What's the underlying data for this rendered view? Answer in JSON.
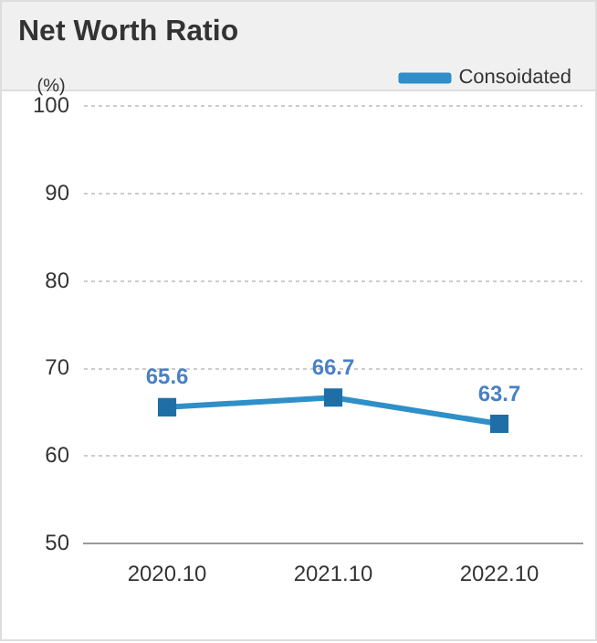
{
  "chart_data": {
    "type": "line",
    "title": "Net Worth Ratio",
    "ylabel": "(%)",
    "categories": [
      "2020.10",
      "2021.10",
      "2022.10"
    ],
    "series": [
      {
        "name": "Consoidated",
        "color": "#2f8fc8",
        "values": [
          65.6,
          66.7,
          63.7
        ]
      }
    ],
    "ylim": [
      50,
      100
    ],
    "yticks": [
      50,
      60,
      70,
      80,
      90,
      100
    ],
    "grid": "y",
    "legend": "top right",
    "marker": "square",
    "line_style": "solid",
    "data_labels": true
  }
}
